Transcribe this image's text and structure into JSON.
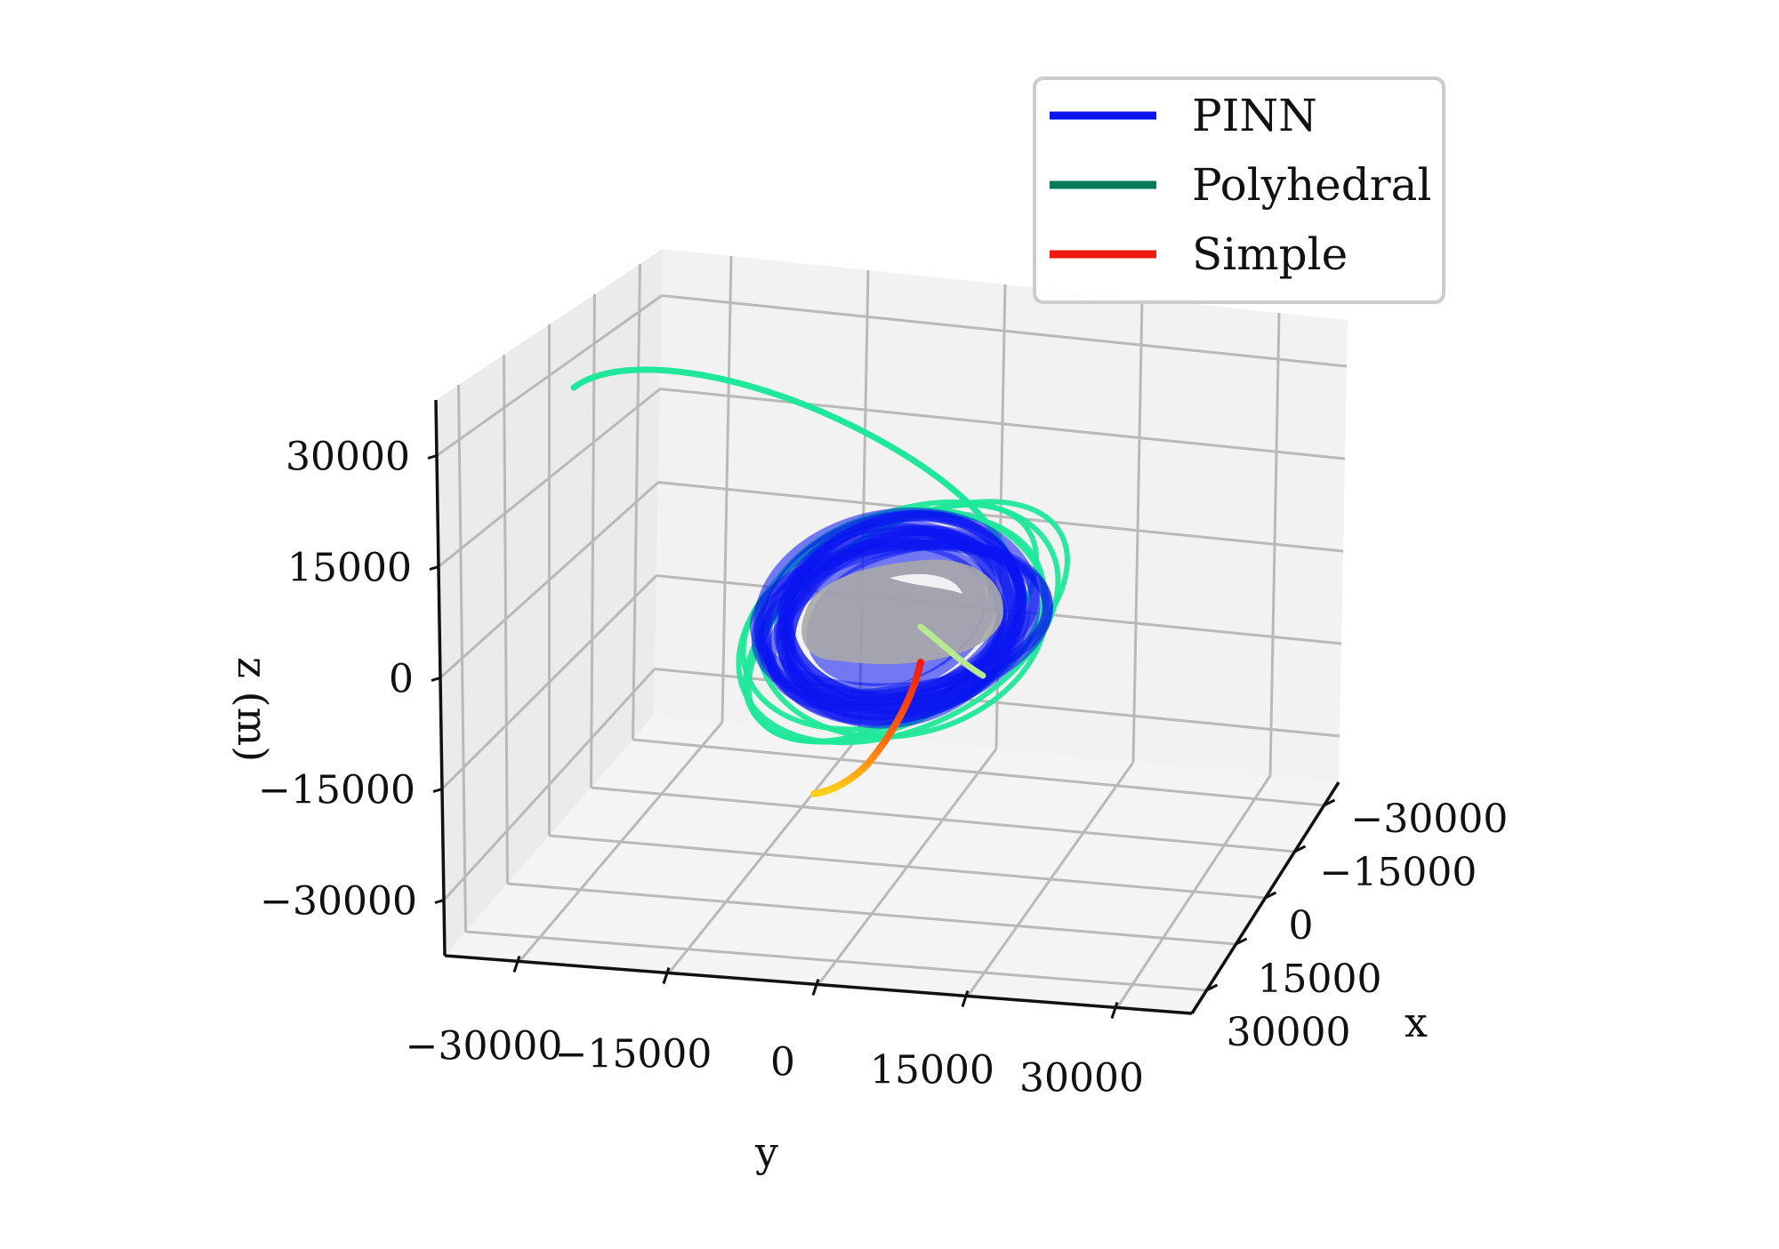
{
  "chart_data": {
    "type": "line",
    "projection": "3d",
    "title": "",
    "xlabel": "x",
    "ylabel": "y",
    "zlabel": "z (m)",
    "xticks": [
      "−30000",
      "−15000",
      "0",
      "15000",
      "30000"
    ],
    "yticks": [
      "−30000",
      "−15000",
      "0",
      "15000",
      "30000"
    ],
    "zticks": [
      "30000",
      "15000",
      "0",
      "−15000",
      "−30000"
    ],
    "xlim": [
      -37500,
      37500
    ],
    "ylim": [
      -37500,
      37500
    ],
    "zlim": [
      -37500,
      37500
    ],
    "grid": true,
    "legend_position": "top-right",
    "series": [
      {
        "name": "PINN",
        "color": "#0a14f0",
        "description_shape": "dense orbit rings around body"
      },
      {
        "name": "Polyhedral",
        "color": "#0a7a5c",
        "render_color": "#1fe89a"
      },
      {
        "name": "Simple",
        "color": "#ee1a10"
      }
    ],
    "body_color": "#a8a8a8"
  }
}
